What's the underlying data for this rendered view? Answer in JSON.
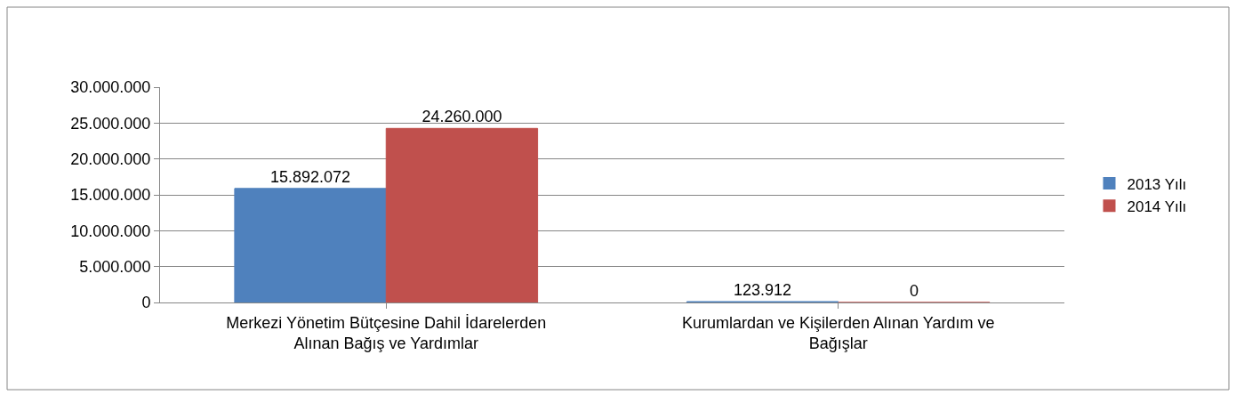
{
  "chart_data": {
    "type": "bar",
    "categories": [
      "Merkezi Yönetim Bütçesine Dahil İdarelerden Alınan Bağış ve Yardımlar",
      "Kurumlardan ve Kişilerden Alınan Yardım ve Bağışlar"
    ],
    "series": [
      {
        "name": "2013 Yılı",
        "color": "#4f81bd",
        "values": [
          15892072,
          123912
        ],
        "value_labels": [
          "15.892.072",
          "123.912"
        ]
      },
      {
        "name": "2014 Yılı",
        "color": "#c0504d",
        "values": [
          24260000,
          0
        ],
        "value_labels": [
          "24.260.000",
          "0"
        ]
      }
    ],
    "ylim": [
      0,
      30000000
    ],
    "yticks": [
      0,
      {
        "value": 5000000,
        "label": "5.000.000"
      },
      {
        "value": 10000000,
        "label": "10.000.000"
      },
      {
        "value": 15000000,
        "label": "15.000.000"
      },
      {
        "value": 20000000,
        "label": "20.000.000"
      },
      {
        "value": 25000000,
        "label": "25.000.000"
      },
      {
        "value": 30000000,
        "label": "30.000.000"
      }
    ],
    "grid": "y",
    "legend": "right"
  }
}
